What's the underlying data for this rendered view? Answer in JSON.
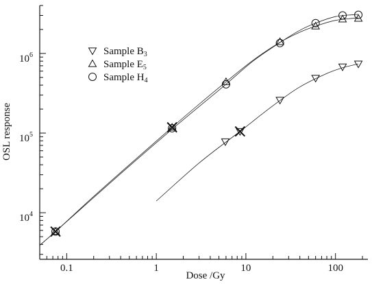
{
  "chart_data": {
    "type": "scatter",
    "xlabel": "Dose /Gy",
    "ylabel": "OSL response",
    "x_scale": "log",
    "y_scale": "log",
    "xlim": [
      0.05,
      230
    ],
    "ylim": [
      2600,
      4000000
    ],
    "x_ticks": [
      {
        "value": 0.1,
        "label": "0.1"
      },
      {
        "value": 1,
        "label": "1"
      },
      {
        "value": 10,
        "label": "10"
      },
      {
        "value": 100,
        "label": "100"
      }
    ],
    "y_ticks": [
      {
        "value": 10000,
        "base": "10",
        "exp": "4"
      },
      {
        "value": 100000,
        "base": "10",
        "exp": "5"
      },
      {
        "value": 1000000,
        "base": "10",
        "exp": "6"
      }
    ],
    "legend_position": "top-left",
    "grid": false,
    "series": [
      {
        "name_main": "Sample B",
        "name_sub": "3",
        "marker": "triangle-down",
        "x": [
          5.9,
          8.6,
          24,
          60,
          120,
          180
        ],
        "y": [
          78000,
          105000,
          260000,
          490000,
          680000,
          740000
        ],
        "curve": [
          [
            1,
            14000
          ],
          [
            3,
            42000
          ],
          [
            8.6,
            105000
          ],
          [
            20,
            220000
          ],
          [
            40,
            380000
          ],
          [
            80,
            560000
          ],
          [
            120,
            660000
          ],
          [
            180,
            740000
          ]
        ]
      },
      {
        "name_main": "Sample E",
        "name_sub": "5",
        "marker": "triangle-up",
        "x": [
          0.075,
          1.5,
          6,
          24,
          60,
          120,
          180
        ],
        "y": [
          5800,
          118000,
          440000,
          1400000,
          2200000,
          2700000,
          2750000
        ],
        "curve": [
          [
            0.05,
            3900
          ],
          [
            0.075,
            5800
          ],
          [
            0.2,
            16000
          ],
          [
            0.5,
            40000
          ],
          [
            1.5,
            118000
          ],
          [
            3,
            230000
          ],
          [
            6,
            440000
          ],
          [
            12,
            820000
          ],
          [
            24,
            1380000
          ],
          [
            40,
            1850000
          ],
          [
            60,
            2200000
          ],
          [
            100,
            2600000
          ],
          [
            180,
            2800000
          ]
        ]
      },
      {
        "name_main": "Sample H",
        "name_sub": "4",
        "marker": "circle",
        "x": [
          0.075,
          1.5,
          6,
          24,
          60,
          120,
          180
        ],
        "y": [
          5800,
          115000,
          410000,
          1350000,
          2400000,
          3000000,
          3050000
        ],
        "curve": [
          [
            0.05,
            3900
          ],
          [
            0.075,
            5800
          ],
          [
            0.2,
            15500
          ],
          [
            0.5,
            38500
          ],
          [
            1.5,
            112000
          ],
          [
            3,
            215000
          ],
          [
            6,
            410000
          ],
          [
            12,
            800000
          ],
          [
            24,
            1370000
          ],
          [
            40,
            1950000
          ],
          [
            60,
            2400000
          ],
          [
            100,
            2900000
          ],
          [
            180,
            3100000
          ]
        ]
      }
    ],
    "crosses": [
      {
        "x": 0.075,
        "y": 5800
      },
      {
        "x": 1.5,
        "y": 118000
      },
      {
        "x": 8.6,
        "y": 105000
      }
    ]
  }
}
